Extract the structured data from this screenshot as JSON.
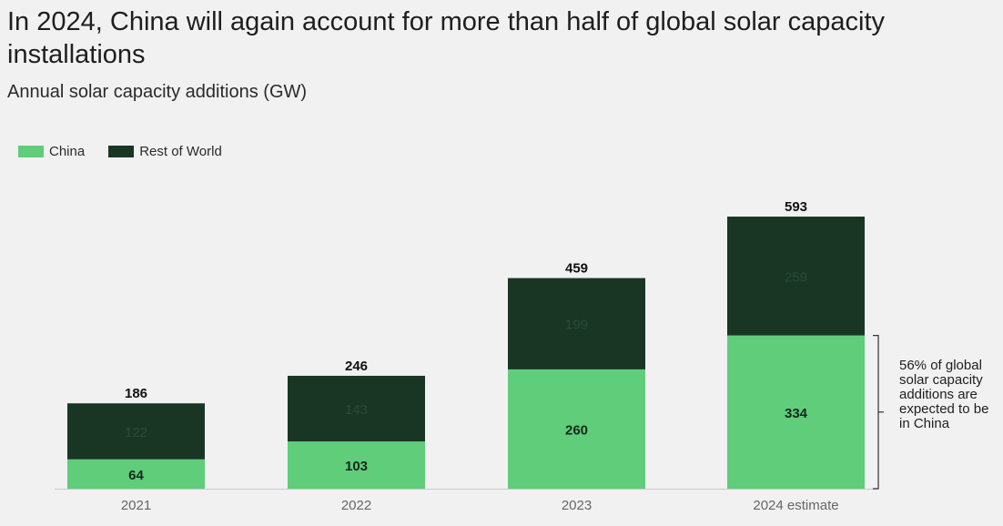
{
  "colors": {
    "china": "#5fcd7a",
    "rest_of_world": "#193625",
    "background": "#f1f1f2"
  },
  "chart_data": {
    "type": "bar",
    "stacked": true,
    "title": "In 2024, China will again account for more than half of global solar capacity installations",
    "subtitle": "Annual solar capacity additions (GW)",
    "categories": [
      "2021",
      "2022",
      "2023",
      "2024 estimate"
    ],
    "series": [
      {
        "name": "China",
        "values": [
          64,
          103,
          260,
          334
        ]
      },
      {
        "name": "Rest of World",
        "values": [
          122,
          143,
          199,
          259
        ]
      }
    ],
    "totals": [
      186,
      246,
      459,
      593
    ],
    "ylim": [
      0,
      593
    ],
    "xlabel": "",
    "ylabel": "",
    "legend": "top-left",
    "annotation": "56% of global solar capacity additions are expected to be in China"
  }
}
